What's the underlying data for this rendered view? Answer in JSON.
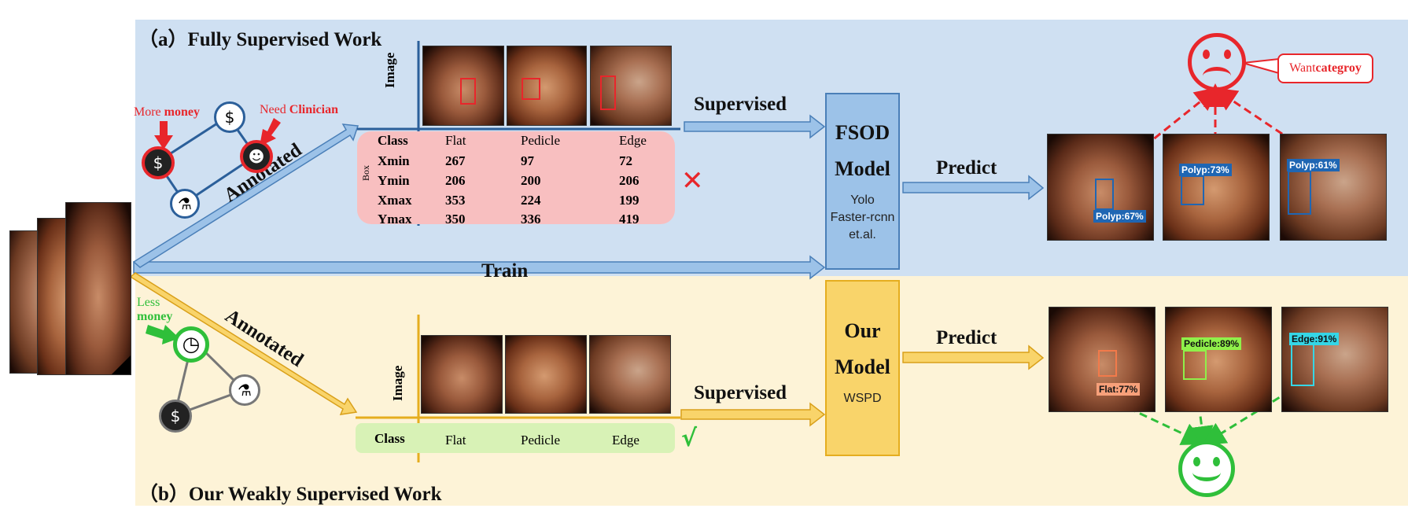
{
  "section_a": {
    "title": "（a）Fully Supervised Work"
  },
  "section_b": {
    "title": "（b）Our Weakly Supervised Work"
  },
  "train_label": "Train",
  "annotated_label": "Annotated",
  "supervised_label": "Supervised",
  "predict_label": "Predict",
  "image_axis_label": "Image",
  "box_label": "Box",
  "fs_cost": {
    "more": "More ",
    "money": "money",
    "need": "Need ",
    "clinician": "Clinician"
  },
  "ws_cost": {
    "less": "Less",
    "money": "money"
  },
  "fs_table": {
    "headers": [
      "Class",
      "Flat",
      "Pedicle",
      "Edge"
    ],
    "rows": [
      {
        "label": "Xmin",
        "values": [
          "267",
          "97",
          "72"
        ]
      },
      {
        "label": "Ymin",
        "values": [
          "206",
          "200",
          "206"
        ]
      },
      {
        "label": "Xmax",
        "values": [
          "353",
          "224",
          "199"
        ]
      },
      {
        "label": "Ymax",
        "values": [
          "350",
          "336",
          "419"
        ]
      }
    ]
  },
  "ws_table": {
    "headers": [
      "Class",
      "Flat",
      "Pedicle",
      "Edge"
    ]
  },
  "fs_model": {
    "line1": "FSOD",
    "line2": "Model",
    "sub1": "Yolo",
    "sub2": "Faster-rcnn",
    "sub3": "et.al."
  },
  "ws_model": {
    "line1": "Our",
    "line2": "Model",
    "sub1": "WSPD"
  },
  "fs_predictions": [
    "Polyp:67%",
    "Polyp:73%",
    "Polyp:61%"
  ],
  "ws_predictions": [
    "Flat:77%",
    "Pedicle:89%",
    "Edge:91%"
  ],
  "want_label": {
    "want": "Want ",
    "category": "categroy"
  },
  "marks": {
    "cross": "✕",
    "check": "√"
  },
  "icons": {
    "money": "$",
    "clinician": "☻",
    "microscope": "⚗",
    "clock": "◷"
  },
  "colors": {
    "blue_panel": "#cfe0f2",
    "yellow_panel": "#fdf3d7",
    "red": "#e8262b",
    "green": "#2fbf3a",
    "blue_arrow": "#8fb8e2",
    "yellow_arrow": "#f9d46a"
  }
}
